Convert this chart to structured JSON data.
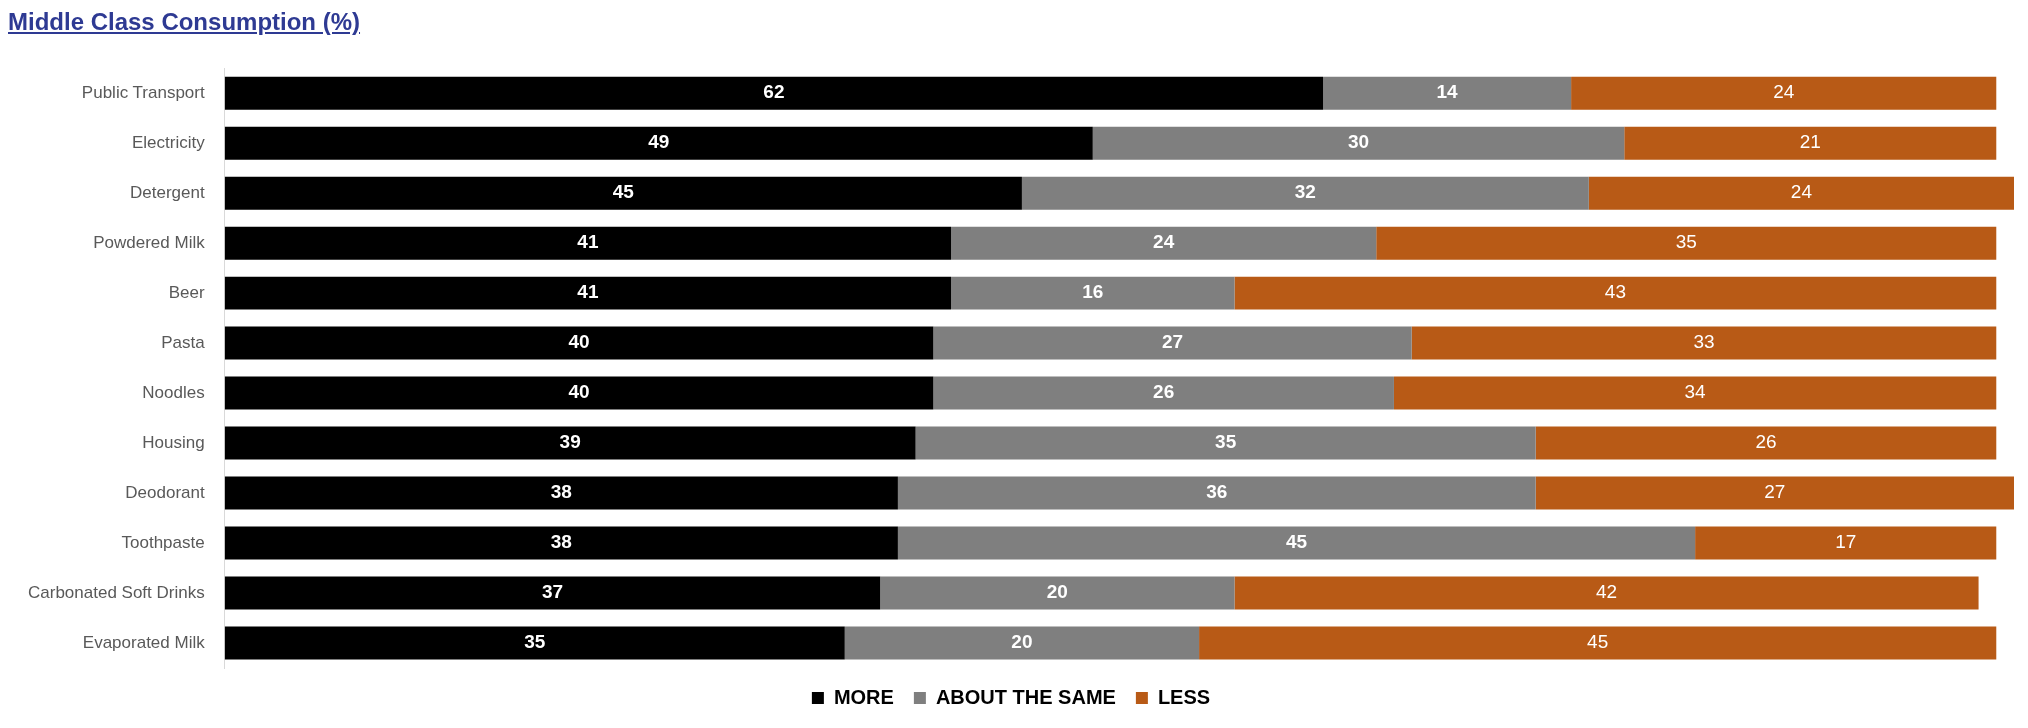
{
  "chart_data": {
    "type": "bar",
    "orientation": "horizontal",
    "stacked": true,
    "title": "Middle Class Consumption (%)",
    "categories": [
      "Public Transport",
      "Electricity",
      "Detergent",
      "Powdered Milk",
      "Beer",
      "Pasta",
      "Noodles",
      "Housing",
      "Deodorant",
      "Toothpaste",
      "Carbonated Soft Drinks",
      "Evaporated Milk"
    ],
    "series": [
      {
        "name": "MORE",
        "color": "#000000",
        "values": [
          62,
          49,
          45,
          41,
          41,
          40,
          40,
          39,
          38,
          38,
          37,
          35
        ]
      },
      {
        "name": "ABOUT THE SAME",
        "color": "#7f7f7f",
        "values": [
          14,
          30,
          32,
          24,
          16,
          27,
          26,
          35,
          36,
          45,
          20,
          20
        ]
      },
      {
        "name": "LESS",
        "color": "#b85a16",
        "values": [
          24,
          21,
          24,
          35,
          43,
          33,
          34,
          26,
          27,
          17,
          42,
          45
        ]
      }
    ],
    "data_labels": true,
    "legend": "bottom"
  }
}
